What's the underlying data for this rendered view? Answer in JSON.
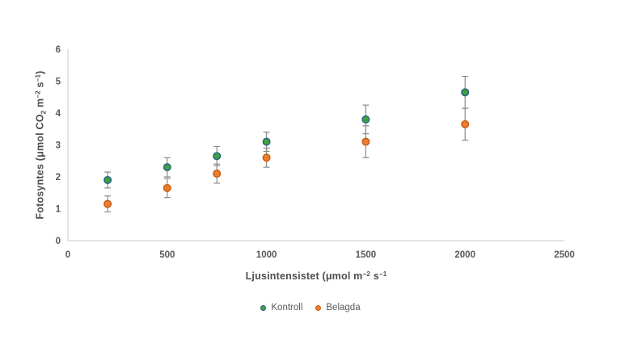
{
  "chart_data": {
    "type": "scatter",
    "title": "",
    "xlabel": "Ljusintensistet (μmol m⁻² s⁻¹",
    "ylabel": "Fotosyntes (μmol CO₂ m⁻² s⁻¹)",
    "xlabel_parts": [
      {
        "t": "Ljusintensistet (μmol m"
      },
      {
        "t": "−2",
        "sup": true
      },
      {
        "t": " s"
      },
      {
        "t": "−1",
        "sup": true
      }
    ],
    "ylabel_parts": [
      {
        "t": "Fotosyntes (μmol CO"
      },
      {
        "t": "2",
        "sub": true
      },
      {
        "t": " m"
      },
      {
        "t": "−2",
        "sup": true
      },
      {
        "t": " s"
      },
      {
        "t": "−1",
        "sup": true
      },
      {
        "t": ")"
      }
    ],
    "xlim": [
      0,
      2500
    ],
    "ylim": [
      0,
      6
    ],
    "x_ticks": [
      0,
      500,
      1000,
      1500,
      2000,
      2500
    ],
    "y_ticks": [
      0,
      1,
      2,
      3,
      4,
      5,
      6
    ],
    "grid": false,
    "legend_position": "bottom",
    "series": [
      {
        "name": "Kontroll",
        "marker_color": "#3EA13E",
        "marker_border": "#2A5E8A",
        "x": [
          200,
          500,
          750,
          1000,
          1500,
          2000
        ],
        "y": [
          1.9,
          2.3,
          2.65,
          3.1,
          3.8,
          4.65
        ],
        "yerr": [
          0.25,
          0.3,
          0.3,
          0.3,
          0.45,
          0.5
        ]
      },
      {
        "name": "Belagda",
        "marker_color": "#ED7D31",
        "marker_border": "#C55A11",
        "x": [
          200,
          500,
          750,
          1000,
          1500,
          2000
        ],
        "y": [
          1.15,
          1.65,
          2.1,
          2.6,
          3.1,
          3.65
        ],
        "yerr": [
          0.25,
          0.3,
          0.3,
          0.3,
          0.5,
          0.5
        ]
      }
    ],
    "colors": {
      "axis_line": "#C8C8C8",
      "error_bar": "#8C8C8C",
      "tick_text": "#595959",
      "title_text": "#4D4D4D",
      "background": "#FFFFFF"
    }
  }
}
